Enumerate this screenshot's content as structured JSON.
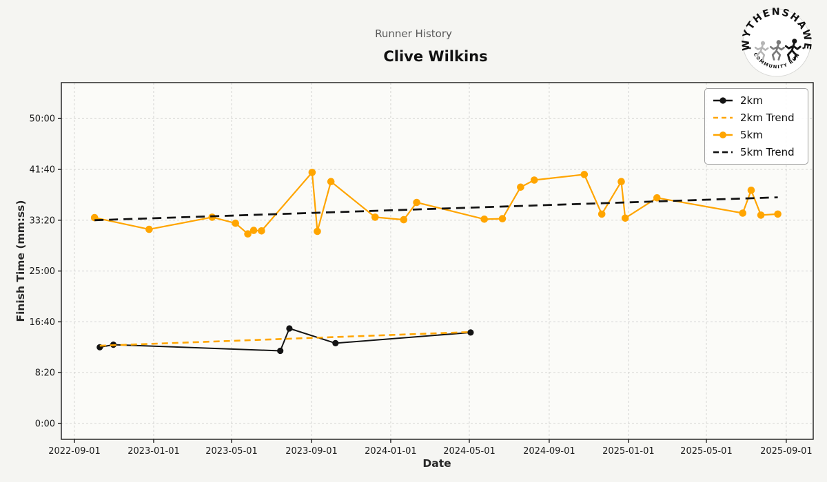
{
  "header": {
    "subtitle": "Runner History",
    "title": "Clive Wilkins"
  },
  "logo": {
    "top_text": "WYTHENSHAWE",
    "bottom_text": "COMMUNITY RUN"
  },
  "chart_data": {
    "type": "line",
    "title": "Runner History",
    "subtitle": "Clive Wilkins",
    "xlabel": "Date",
    "ylabel": "Finish Time (mm:ss)",
    "grid": true,
    "legend_position": "upper right",
    "x_ticks": [
      "2022-09-01",
      "2023-01-01",
      "2023-05-01",
      "2023-09-01",
      "2024-01-01",
      "2024-05-01",
      "2024-09-01",
      "2025-01-01",
      "2025-05-01",
      "2025-09-01"
    ],
    "y_ticks": [
      "0:00",
      "8:20",
      "16:40",
      "25:00",
      "33:20",
      "41:40",
      "50:00"
    ],
    "xlim": [
      "2022-08-12",
      "2025-10-13"
    ],
    "ylim_seconds": [
      -155,
      3355
    ],
    "colors": {
      "black": "#141414",
      "orange": "#FFA500"
    },
    "series": [
      {
        "name": "2km",
        "color": "#141414",
        "dash": null,
        "width": 2,
        "markers": true,
        "marker_radius": 4.6,
        "points": [
          {
            "date": "2022-10-10",
            "time": "12:30"
          },
          {
            "date": "2022-10-31",
            "time": "12:55"
          },
          {
            "date": "2023-07-15",
            "time": "11:55"
          },
          {
            "date": "2023-07-29",
            "time": "15:35"
          },
          {
            "date": "2023-10-08",
            "time": "13:10"
          },
          {
            "date": "2024-05-03",
            "time": "14:55"
          }
        ]
      },
      {
        "name": "2km Trend",
        "color": "#FFA500",
        "dash": "9 6",
        "width": 2.6,
        "markers": false,
        "marker_radius": 0,
        "points": [
          {
            "date": "2022-10-10",
            "time": "12:45"
          },
          {
            "date": "2024-05-03",
            "time": "15:00"
          }
        ]
      },
      {
        "name": "5km",
        "color": "#FFA500",
        "dash": null,
        "width": 2.2,
        "markers": true,
        "marker_radius": 5.3,
        "points": [
          {
            "date": "2022-10-02",
            "time": "33:45"
          },
          {
            "date": "2022-12-25",
            "time": "31:50"
          },
          {
            "date": "2023-04-01",
            "time": "33:50"
          },
          {
            "date": "2023-05-07",
            "time": "32:50"
          },
          {
            "date": "2023-05-26",
            "time": "31:05"
          },
          {
            "date": "2023-06-04",
            "time": "31:40"
          },
          {
            "date": "2023-06-16",
            "time": "31:35"
          },
          {
            "date": "2023-09-02",
            "time": "41:10"
          },
          {
            "date": "2023-09-10",
            "time": "31:30"
          },
          {
            "date": "2023-10-01",
            "time": "39:40"
          },
          {
            "date": "2023-12-08",
            "time": "33:50"
          },
          {
            "date": "2024-01-21",
            "time": "33:25"
          },
          {
            "date": "2024-02-10",
            "time": "36:15"
          },
          {
            "date": "2024-05-24",
            "time": "33:30"
          },
          {
            "date": "2024-06-21",
            "time": "33:35"
          },
          {
            "date": "2024-07-19",
            "time": "38:45"
          },
          {
            "date": "2024-08-09",
            "time": "39:55"
          },
          {
            "date": "2024-10-25",
            "time": "40:50"
          },
          {
            "date": "2024-11-21",
            "time": "34:20"
          },
          {
            "date": "2024-12-21",
            "time": "39:40"
          },
          {
            "date": "2024-12-27",
            "time": "33:40"
          },
          {
            "date": "2025-02-14",
            "time": "37:00"
          },
          {
            "date": "2025-06-26",
            "time": "34:30"
          },
          {
            "date": "2025-07-09",
            "time": "38:15"
          },
          {
            "date": "2025-07-24",
            "time": "34:10"
          },
          {
            "date": "2025-08-19",
            "time": "34:20"
          }
        ]
      },
      {
        "name": "5km Trend",
        "color": "#141414",
        "dash": "13 8",
        "width": 2.8,
        "markers": false,
        "marker_radius": 0,
        "points": [
          {
            "date": "2022-10-02",
            "time": "33:20"
          },
          {
            "date": "2025-08-19",
            "time": "37:05"
          }
        ]
      }
    ]
  }
}
